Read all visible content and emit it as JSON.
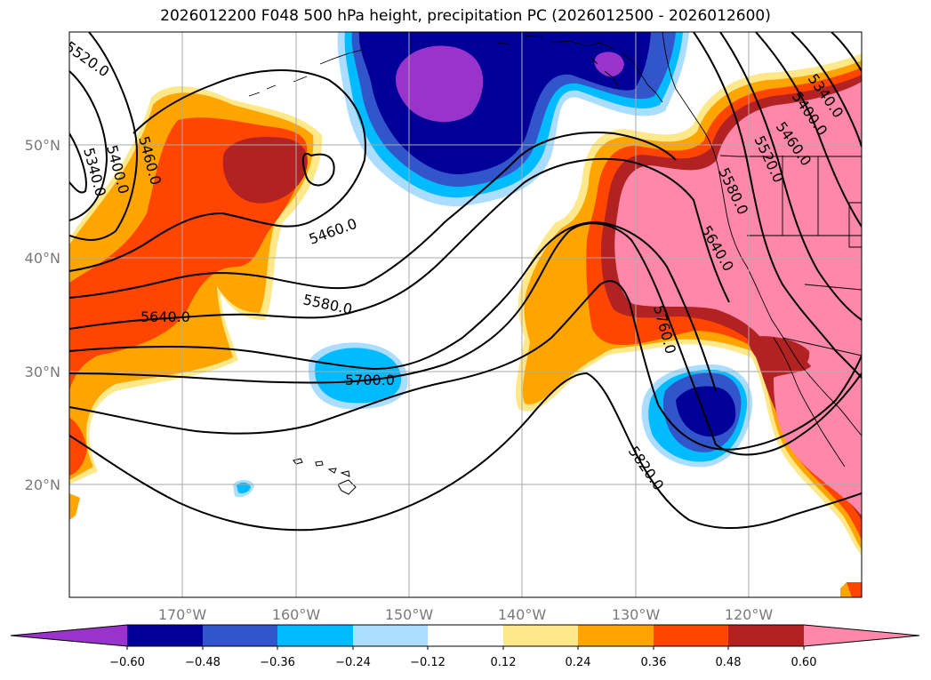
{
  "title": "2026012200 F048 500 hPa height, precipitation PC (2026012500 - 2026012600)",
  "colors": {
    "purple": "#9933cc",
    "navy": "#000099",
    "royal": "#3355cc",
    "sky": "#00bbff",
    "light_blue": "#aaddff",
    "white": "#ffffff",
    "light_yellow": "#ffe88a",
    "orange": "#ffa500",
    "red_orange": "#ff4500",
    "dark_red": "#b22222",
    "pink": "#ff88aa"
  },
  "axes": {
    "lat_labels": [
      "50°N",
      "40°N",
      "30°N",
      "20°N"
    ],
    "lon_labels": [
      "170°W",
      "160°W",
      "150°W",
      "140°W",
      "130°W",
      "120°W"
    ]
  },
  "contour_labels": [
    "5520.0",
    "5340.0",
    "5400.0",
    "5460.0",
    "5460.0",
    "5580.0",
    "5640.0",
    "5700.0",
    "5340.0",
    "5400.0",
    "5460.0",
    "5520.0",
    "5580.0",
    "5640.0",
    "5760.0",
    "5820.0"
  ],
  "colorbar": {
    "ticks": [
      "−0.60",
      "−0.48",
      "−0.36",
      "−0.24",
      "−0.12",
      "0.12",
      "0.24",
      "0.36",
      "0.48",
      "0.60"
    ]
  }
}
